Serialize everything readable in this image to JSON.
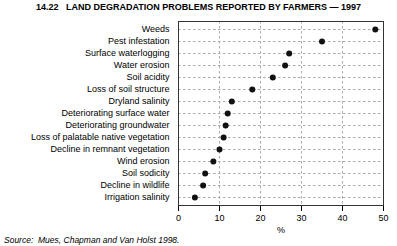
{
  "chart_data": {
    "type": "dot",
    "title": "14.22   LAND DEGRADATION PROBLEMS REPORTED BY FARMERS — 1997",
    "categories": [
      "Irrigation salinity",
      "Decline in wildlife",
      "Soil sodicity",
      "Wind erosion",
      "Decline in remnant vegetation",
      "Loss of palatable native vegetation",
      "Deteriorating groundwater",
      "Deteriorating surface water",
      "Dryland salinity",
      "Loss of soil structure",
      "Soil acidity",
      "Water erosion",
      "Surface waterlogging",
      "Pest infestation",
      "Weeds"
    ],
    "values": [
      4,
      6,
      6.5,
      8.5,
      10,
      11,
      11.5,
      12,
      13,
      18,
      23,
      26,
      27,
      35,
      48
    ],
    "xlabel": "%",
    "xlim": [
      0,
      50
    ],
    "xticks": [
      0,
      10,
      20,
      30,
      40,
      50
    ],
    "color": "#111111",
    "grid": true,
    "source": "Source:  Mues, Chapman and Van Holst 1998."
  }
}
